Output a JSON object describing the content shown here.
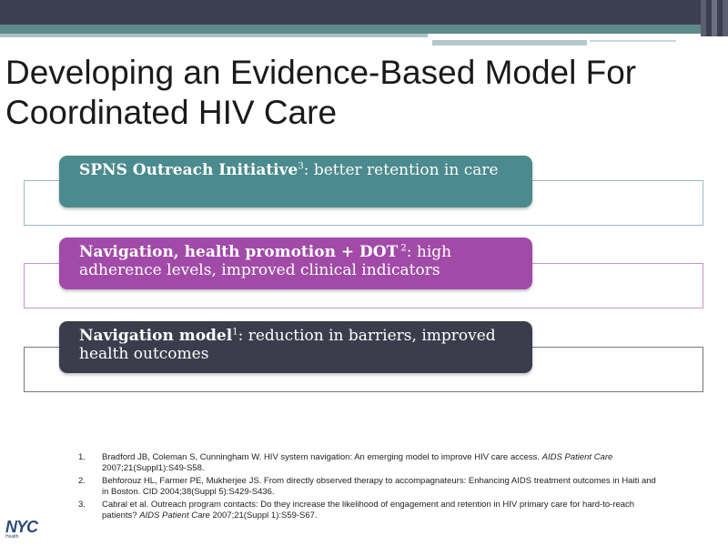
{
  "slide": {
    "title": "Developing an Evidence-Based Model For Coordinated HIV Care"
  },
  "boxes": [
    {
      "bold": "SPNS Outreach Initiative",
      "sup": "3",
      "text": ": better retention in care",
      "color": "#4b8a8e"
    },
    {
      "bold": "Navigation, health promotion + DOT",
      "sup": " 2",
      "text": ": high adherence levels, improved clinical indicators",
      "color": "#a24aa8"
    },
    {
      "bold": "Navigation model",
      "sup": "1",
      "text": ": reduction in barriers, improved health outcomes",
      "color": "#3b3d4d"
    }
  ],
  "references": [
    {
      "num": "1.",
      "text": "Bradford JB, Coleman S, Cunningham W. HIV system navigation: An emerging model to improve HIV care access. ",
      "journal": "AIDS Patient Care",
      "tail": " 2007;21(Suppl1):S49-S58."
    },
    {
      "num": "2.",
      "text": "Behforouz HL, Farmer PE, Mukherjee JS. From directly observed therapy to accompagnateurs: Enhancing AIDS treatment outcomes in Haiti and in Boston. CID 2004;38(Suppl 5):S429-S436.",
      "journal": "",
      "tail": ""
    },
    {
      "num": "3.",
      "text": "Cabral et al. Outreach program contacts: Do they increase the likelihood of engagement and retention in HIV primary care for hard-to-reach patients? ",
      "journal": "AIDS Patient Care",
      "tail": " 2007;21(Suppl 1):S59-S67."
    }
  ],
  "logo": {
    "name": "NYC",
    "sub": "Health"
  }
}
